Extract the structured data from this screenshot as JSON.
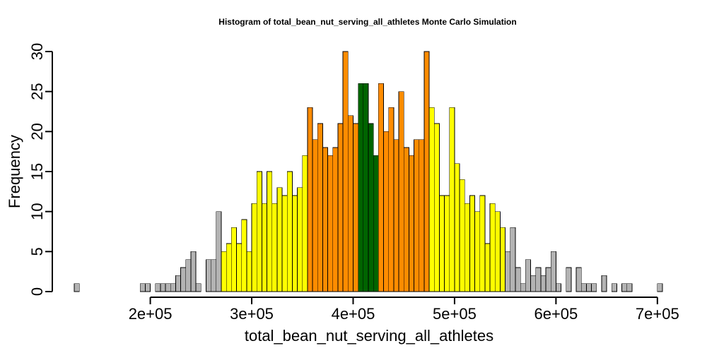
{
  "chart_data": {
    "type": "bar",
    "title": "Histogram of  total_bean_nut_serving_all_athletes  Monte Carlo Simulation",
    "xlabel": "total_bean_nut_serving_all_athletes",
    "ylabel": "Frequency",
    "xlim": [
      125000,
      700000
    ],
    "ylim": [
      0,
      30
    ],
    "x_ticks": [
      200000,
      300000,
      400000,
      500000,
      600000,
      700000
    ],
    "x_tick_labels": [
      "2e+05",
      "3e+05",
      "4e+05",
      "5e+05",
      "6e+05",
      "7e+05"
    ],
    "y_ticks": [
      0,
      5,
      10,
      15,
      20,
      25,
      30
    ],
    "y_tick_labels": [
      "0",
      "5",
      "10",
      "15",
      "20",
      "25",
      "30"
    ],
    "grid": false,
    "legend": "none",
    "bin_start": 125000,
    "bin_width": 5000,
    "values": [
      1,
      0,
      0,
      0,
      0,
      0,
      0,
      0,
      0,
      0,
      0,
      0,
      0,
      1,
      1,
      0,
      1,
      1,
      1,
      1,
      2,
      3,
      4,
      5,
      1,
      0,
      4,
      4,
      10,
      5,
      6,
      8,
      6,
      9,
      5,
      11,
      15,
      11,
      15,
      11,
      13,
      12,
      15,
      12,
      13,
      17,
      23,
      19,
      21,
      18,
      17,
      18,
      21,
      30,
      22,
      21,
      26,
      26,
      21,
      17,
      26,
      20,
      23,
      19,
      25,
      18,
      17,
      19,
      19,
      30,
      23,
      21,
      12,
      12,
      23,
      16,
      14,
      11,
      12,
      10,
      12,
      6,
      11,
      10,
      8,
      5,
      8,
      3,
      1,
      4,
      2,
      3,
      2,
      3,
      5,
      1,
      0,
      3,
      0,
      3,
      1,
      1,
      1,
      0,
      2,
      0,
      1,
      0,
      1,
      1,
      0,
      0,
      0,
      0,
      0,
      1
    ],
    "color_bands": [
      {
        "from": 125000,
        "to": 270000,
        "color": "#b3b3b3"
      },
      {
        "from": 270000,
        "to": 355000,
        "color": "#ffff00"
      },
      {
        "from": 355000,
        "to": 405000,
        "color": "#ff8c00"
      },
      {
        "from": 405000,
        "to": 425000,
        "color": "#006400"
      },
      {
        "from": 425000,
        "to": 475000,
        "color": "#ff8c00"
      },
      {
        "from": 475000,
        "to": 550000,
        "color": "#ffff00"
      },
      {
        "from": 550000,
        "to": 705000,
        "color": "#b3b3b3"
      }
    ],
    "colors": {
      "tail": "#b3b3b3",
      "outer": "#ffff00",
      "inner": "#ff8c00",
      "center": "#006400",
      "border": "#000000"
    }
  }
}
